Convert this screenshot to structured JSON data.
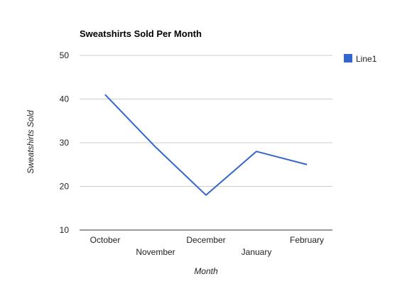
{
  "chart_data": {
    "type": "line",
    "title": "Sweatshirts Sold Per Month",
    "xlabel": "Month",
    "ylabel": "Sweatshirts Sold",
    "categories": [
      "October",
      "November",
      "December",
      "January",
      "February"
    ],
    "series": [
      {
        "name": "Line1",
        "values": [
          41,
          29,
          18,
          28,
          25
        ],
        "color": "#3366cc"
      }
    ],
    "ylim": [
      10,
      50
    ],
    "yticks": [
      10,
      20,
      30,
      40,
      50
    ],
    "grid": true,
    "legend": "right"
  }
}
